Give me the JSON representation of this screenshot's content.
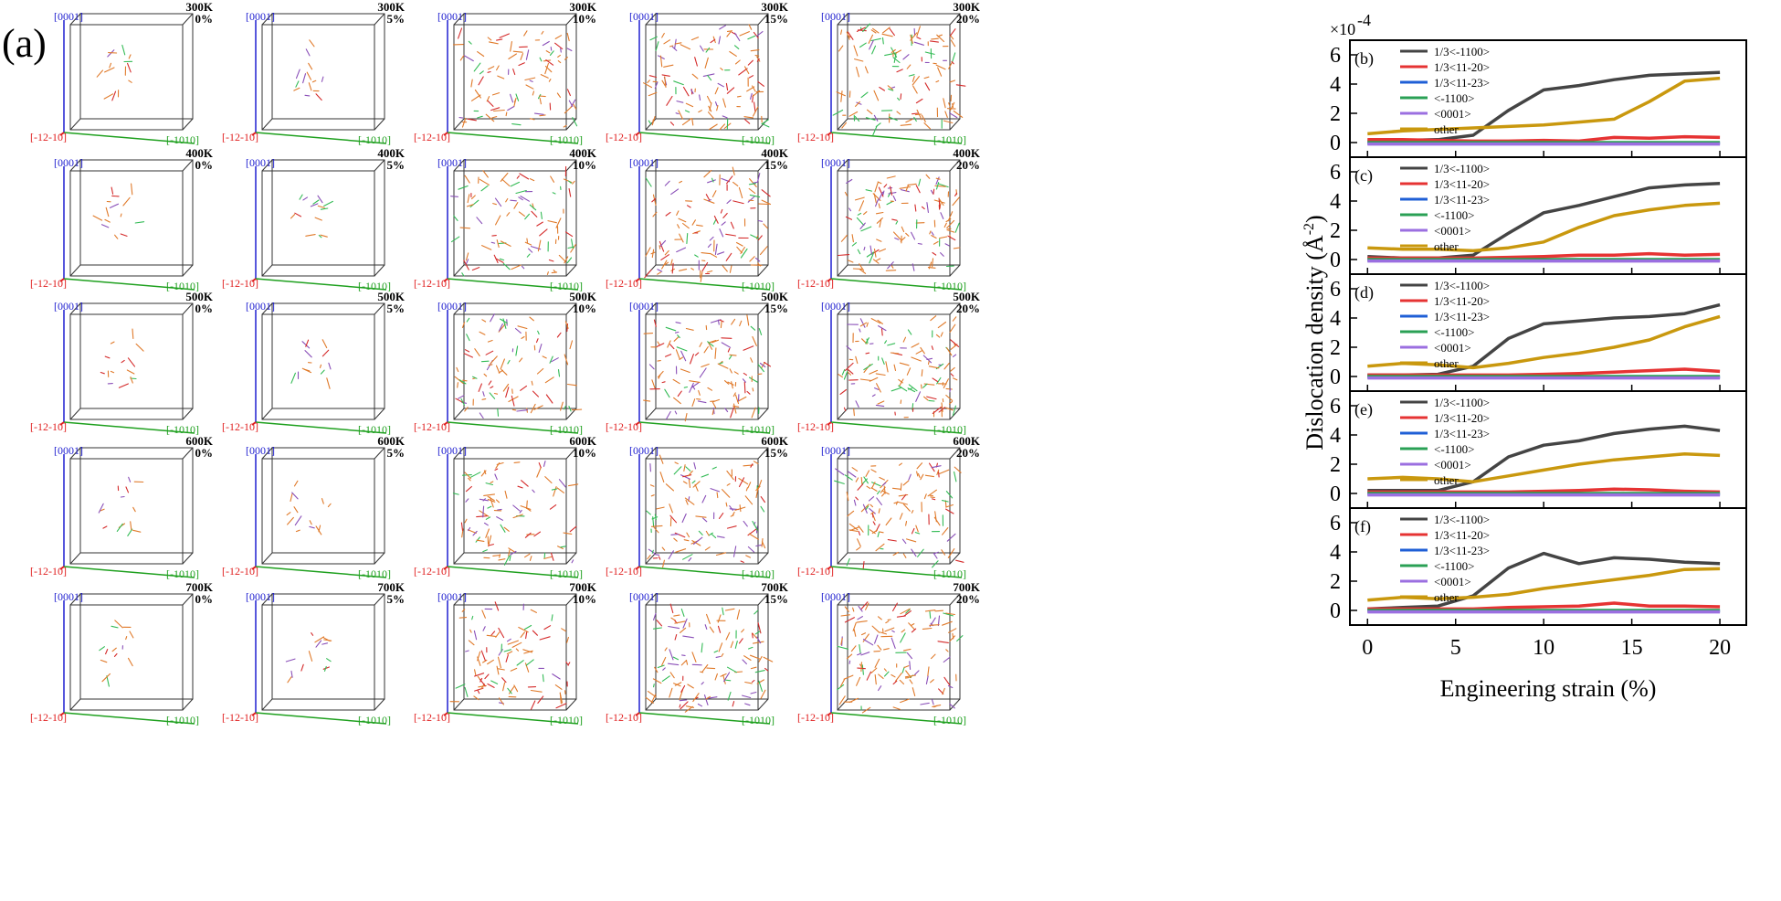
{
  "figure": {
    "panel_a_label": "(a)",
    "scale_factor": "×10",
    "scale_exponent": "-4",
    "axis_labels": {
      "z": "[0001]",
      "x": "[-12-10]",
      "y": "[-1010]"
    },
    "temperatures": [
      "300K",
      "400K",
      "500K",
      "600K",
      "700K"
    ],
    "strains": [
      "0%",
      "5%",
      "10%",
      "15%",
      "20%"
    ],
    "colors": {
      "z_axis": "#1f1fd0",
      "x_axis": "#e01f1f",
      "y_axis": "#1fa01f",
      "box_edge": "#333333",
      "dislocation_main": "#e07a2a",
      "dislocation_red": "#d42a2a",
      "dislocation_green": "#33bb55",
      "dislocation_purple": "#8a4fb8"
    }
  },
  "chart_data": [
    {
      "type": "line",
      "panel": "(b)",
      "temperature": "300K",
      "x": [
        0,
        2,
        4,
        6,
        8,
        10,
        12,
        14,
        16,
        18,
        20
      ],
      "xlabel": "Engineering strain (%)",
      "ylabel": "Dislocation density (Å",
      "ylabel_exp": "-2",
      "ylabel_close": ")",
      "xlim": [
        -1,
        21.5
      ],
      "ylim": [
        -1,
        7
      ],
      "xticks": [
        0,
        5,
        10,
        15,
        20
      ],
      "yticks": [
        0,
        2,
        4,
        6
      ],
      "series": [
        {
          "name": "1/3<-1100>",
          "color": "#444444",
          "values": [
            0.1,
            0.15,
            0.2,
            0.5,
            2.2,
            3.6,
            3.9,
            4.3,
            4.6,
            4.7,
            4.8
          ]
        },
        {
          "name": "1/3<11-20>",
          "color": "#e63333",
          "values": [
            0.2,
            0.2,
            0.15,
            0.1,
            0.1,
            0.15,
            0.1,
            0.35,
            0.3,
            0.4,
            0.35
          ]
        },
        {
          "name": "1/3<11-23>",
          "color": "#1f5fd6",
          "values": [
            -0.05,
            -0.05,
            -0.05,
            -0.05,
            -0.05,
            -0.05,
            -0.05,
            -0.05,
            -0.05,
            -0.05,
            -0.05
          ]
        },
        {
          "name": "<-1100>",
          "color": "#2aa055",
          "values": [
            0.0,
            0.0,
            0.0,
            0.0,
            0.0,
            0.0,
            0.0,
            0.0,
            0.0,
            0.0,
            0.0
          ]
        },
        {
          "name": "<0001>",
          "color": "#9b6fe0",
          "values": [
            -0.1,
            -0.1,
            -0.1,
            -0.1,
            -0.1,
            -0.1,
            -0.1,
            -0.1,
            -0.1,
            -0.1,
            -0.1
          ]
        },
        {
          "name": "other",
          "color": "#c9980e",
          "values": [
            0.6,
            0.8,
            0.9,
            1.0,
            1.1,
            1.2,
            1.4,
            1.6,
            2.8,
            4.2,
            4.4
          ]
        }
      ]
    },
    {
      "type": "line",
      "panel": "(c)",
      "temperature": "400K",
      "x": [
        0,
        2,
        4,
        6,
        8,
        10,
        12,
        14,
        16,
        18,
        20
      ],
      "xlim": [
        -1,
        21.5
      ],
      "ylim": [
        -1,
        7
      ],
      "xticks": [
        0,
        5,
        10,
        15,
        20
      ],
      "yticks": [
        0,
        2,
        4,
        6
      ],
      "series": [
        {
          "name": "1/3<-1100>",
          "color": "#444444",
          "values": [
            0.2,
            0.1,
            0.1,
            0.3,
            1.8,
            3.2,
            3.7,
            4.3,
            4.9,
            5.1,
            5.2
          ]
        },
        {
          "name": "1/3<11-20>",
          "color": "#e63333",
          "values": [
            0.1,
            0.1,
            0.1,
            0.1,
            0.15,
            0.2,
            0.3,
            0.3,
            0.4,
            0.3,
            0.35
          ]
        },
        {
          "name": "1/3<11-23>",
          "color": "#1f5fd6",
          "values": [
            -0.05,
            -0.05,
            -0.05,
            -0.05,
            -0.05,
            -0.05,
            -0.05,
            -0.05,
            -0.05,
            -0.05,
            -0.05
          ]
        },
        {
          "name": "<-1100>",
          "color": "#2aa055",
          "values": [
            0.0,
            0.0,
            0.0,
            0.0,
            0.0,
            0.0,
            0.0,
            0.0,
            0.0,
            0.0,
            0.0
          ]
        },
        {
          "name": "<0001>",
          "color": "#9b6fe0",
          "values": [
            -0.1,
            -0.1,
            -0.1,
            -0.1,
            -0.1,
            -0.1,
            -0.1,
            -0.1,
            -0.1,
            -0.1,
            -0.1
          ]
        },
        {
          "name": "other",
          "color": "#c9980e",
          "values": [
            0.8,
            0.7,
            0.7,
            0.6,
            0.8,
            1.2,
            2.2,
            3.0,
            3.4,
            3.7,
            3.85
          ]
        }
      ]
    },
    {
      "type": "line",
      "panel": "(d)",
      "temperature": "500K",
      "x": [
        0,
        2,
        4,
        6,
        8,
        10,
        12,
        14,
        16,
        18,
        20
      ],
      "xlim": [
        -1,
        21.5
      ],
      "ylim": [
        -1,
        7
      ],
      "xticks": [
        0,
        5,
        10,
        15,
        20
      ],
      "yticks": [
        0,
        2,
        4,
        6
      ],
      "series": [
        {
          "name": "1/3<-1100>",
          "color": "#444444",
          "values": [
            0.1,
            0.1,
            0.15,
            0.7,
            2.6,
            3.6,
            3.8,
            4.0,
            4.1,
            4.3,
            4.9
          ]
        },
        {
          "name": "1/3<11-20>",
          "color": "#e63333",
          "values": [
            0.1,
            0.1,
            0.1,
            0.1,
            0.1,
            0.15,
            0.2,
            0.3,
            0.4,
            0.5,
            0.35
          ]
        },
        {
          "name": "1/3<11-23>",
          "color": "#1f5fd6",
          "values": [
            -0.05,
            -0.05,
            -0.05,
            -0.05,
            -0.05,
            -0.05,
            -0.05,
            -0.05,
            -0.05,
            -0.05,
            -0.05
          ]
        },
        {
          "name": "<-1100>",
          "color": "#2aa055",
          "values": [
            0.0,
            0.0,
            0.0,
            0.0,
            0.0,
            0.0,
            0.0,
            0.0,
            0.0,
            0.0,
            0.0
          ]
        },
        {
          "name": "<0001>",
          "color": "#9b6fe0",
          "values": [
            -0.1,
            -0.1,
            -0.1,
            -0.1,
            -0.1,
            -0.1,
            -0.1,
            -0.1,
            -0.1,
            -0.1,
            -0.1
          ]
        },
        {
          "name": "other",
          "color": "#c9980e",
          "values": [
            0.7,
            0.9,
            0.8,
            0.6,
            0.9,
            1.3,
            1.6,
            2.0,
            2.5,
            3.4,
            4.1
          ]
        }
      ]
    },
    {
      "type": "line",
      "panel": "(e)",
      "temperature": "600K",
      "x": [
        0,
        2,
        4,
        6,
        8,
        10,
        12,
        14,
        16,
        18,
        20
      ],
      "xlim": [
        -1,
        21.5
      ],
      "ylim": [
        -1,
        7
      ],
      "xticks": [
        0,
        5,
        10,
        15,
        20
      ],
      "yticks": [
        0,
        2,
        4,
        6
      ],
      "series": [
        {
          "name": "1/3<-1100>",
          "color": "#444444",
          "values": [
            0.2,
            0.2,
            0.2,
            0.8,
            2.5,
            3.3,
            3.6,
            4.1,
            4.4,
            4.6,
            4.3
          ]
        },
        {
          "name": "1/3<11-20>",
          "color": "#e63333",
          "values": [
            0.1,
            0.1,
            0.1,
            0.1,
            0.1,
            0.15,
            0.2,
            0.3,
            0.25,
            0.15,
            0.1
          ]
        },
        {
          "name": "1/3<11-23>",
          "color": "#1f5fd6",
          "values": [
            -0.05,
            -0.05,
            -0.05,
            -0.05,
            -0.05,
            -0.05,
            -0.05,
            -0.05,
            -0.05,
            -0.05,
            -0.05
          ]
        },
        {
          "name": "<-1100>",
          "color": "#2aa055",
          "values": [
            0.0,
            0.0,
            0.0,
            0.0,
            0.0,
            0.0,
            0.0,
            0.0,
            0.0,
            0.0,
            0.0
          ]
        },
        {
          "name": "<0001>",
          "color": "#9b6fe0",
          "values": [
            -0.1,
            -0.1,
            -0.1,
            -0.1,
            -0.1,
            -0.1,
            -0.1,
            -0.1,
            -0.1,
            -0.1,
            -0.1
          ]
        },
        {
          "name": "other",
          "color": "#c9980e",
          "values": [
            1.0,
            1.1,
            1.0,
            0.8,
            1.2,
            1.6,
            2.0,
            2.3,
            2.5,
            2.7,
            2.6
          ]
        }
      ]
    },
    {
      "type": "line",
      "panel": "(f)",
      "temperature": "700K",
      "x": [
        0,
        2,
        4,
        6,
        8,
        10,
        12,
        14,
        16,
        18,
        20
      ],
      "xlim": [
        -1,
        21.5
      ],
      "ylim": [
        -1,
        7
      ],
      "xticks": [
        0,
        5,
        10,
        15,
        20
      ],
      "yticks": [
        0,
        2,
        4,
        6
      ],
      "series": [
        {
          "name": "1/3<-1100>",
          "color": "#444444",
          "values": [
            0.1,
            0.2,
            0.3,
            1.0,
            2.9,
            3.9,
            3.2,
            3.6,
            3.5,
            3.3,
            3.2
          ]
        },
        {
          "name": "1/3<11-20>",
          "color": "#e63333",
          "values": [
            0.1,
            0.1,
            0.1,
            0.1,
            0.2,
            0.25,
            0.3,
            0.5,
            0.3,
            0.3,
            0.25
          ]
        },
        {
          "name": "1/3<11-23>",
          "color": "#1f5fd6",
          "values": [
            -0.05,
            -0.05,
            -0.05,
            -0.05,
            -0.05,
            -0.05,
            -0.05,
            -0.05,
            -0.05,
            -0.05,
            -0.05
          ]
        },
        {
          "name": "<-1100>",
          "color": "#2aa055",
          "values": [
            0.0,
            0.0,
            0.0,
            0.0,
            0.0,
            0.0,
            0.0,
            0.0,
            0.0,
            0.0,
            0.0
          ]
        },
        {
          "name": "<0001>",
          "color": "#9b6fe0",
          "values": [
            -0.1,
            -0.1,
            -0.1,
            -0.1,
            -0.1,
            -0.1,
            -0.1,
            -0.1,
            -0.1,
            -0.1,
            -0.1
          ]
        },
        {
          "name": "other",
          "color": "#c9980e",
          "values": [
            0.7,
            0.9,
            0.8,
            0.9,
            1.1,
            1.5,
            1.8,
            2.1,
            2.4,
            2.8,
            2.85
          ]
        }
      ]
    }
  ]
}
